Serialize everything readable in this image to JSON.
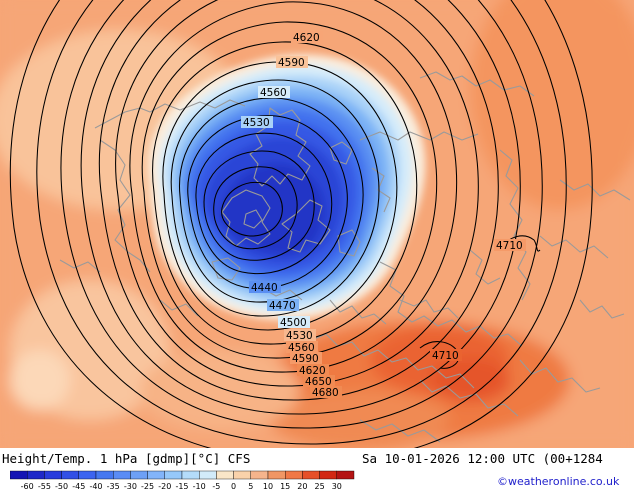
{
  "footer": {
    "title": "Height/Temp. 1 hPa [gdmp][°C] CFS",
    "datetime": "Sa 10-01-2026 12:00 UTC (00+1284",
    "credit": "©weatheronline.co.uk"
  },
  "legend": {
    "ticks": [
      "-60",
      "-55",
      "-50",
      "-45",
      "-40",
      "-35",
      "-30",
      "-25",
      "-20",
      "-15",
      "-10",
      "-5",
      "0",
      "5",
      "10",
      "15",
      "20",
      "25",
      "30"
    ],
    "colors": [
      "#1414b4",
      "#1e28c8",
      "#283cdc",
      "#3250e6",
      "#3c64f0",
      "#4678f0",
      "#5a8cf5",
      "#6ea0f5",
      "#82b4fa",
      "#96c8fa",
      "#b4dcfa",
      "#d2ebfa",
      "#fae6c8",
      "#fad2aa",
      "#f5b48c",
      "#f09664",
      "#f07846",
      "#e65028",
      "#d22814",
      "#b41414"
    ]
  },
  "map": {
    "colors": {
      "background": "#f7a576",
      "warm_core": "#ec6c38",
      "coast": "#9a9a9a",
      "contour": "#000000"
    },
    "contour_labels": [
      "4620",
      "4590",
      "4560",
      "4530",
      "4440",
      "4470",
      "4500",
      "4530",
      "4560",
      "4590",
      "4620",
      "4650",
      "4680",
      "4710",
      "4710"
    ]
  }
}
